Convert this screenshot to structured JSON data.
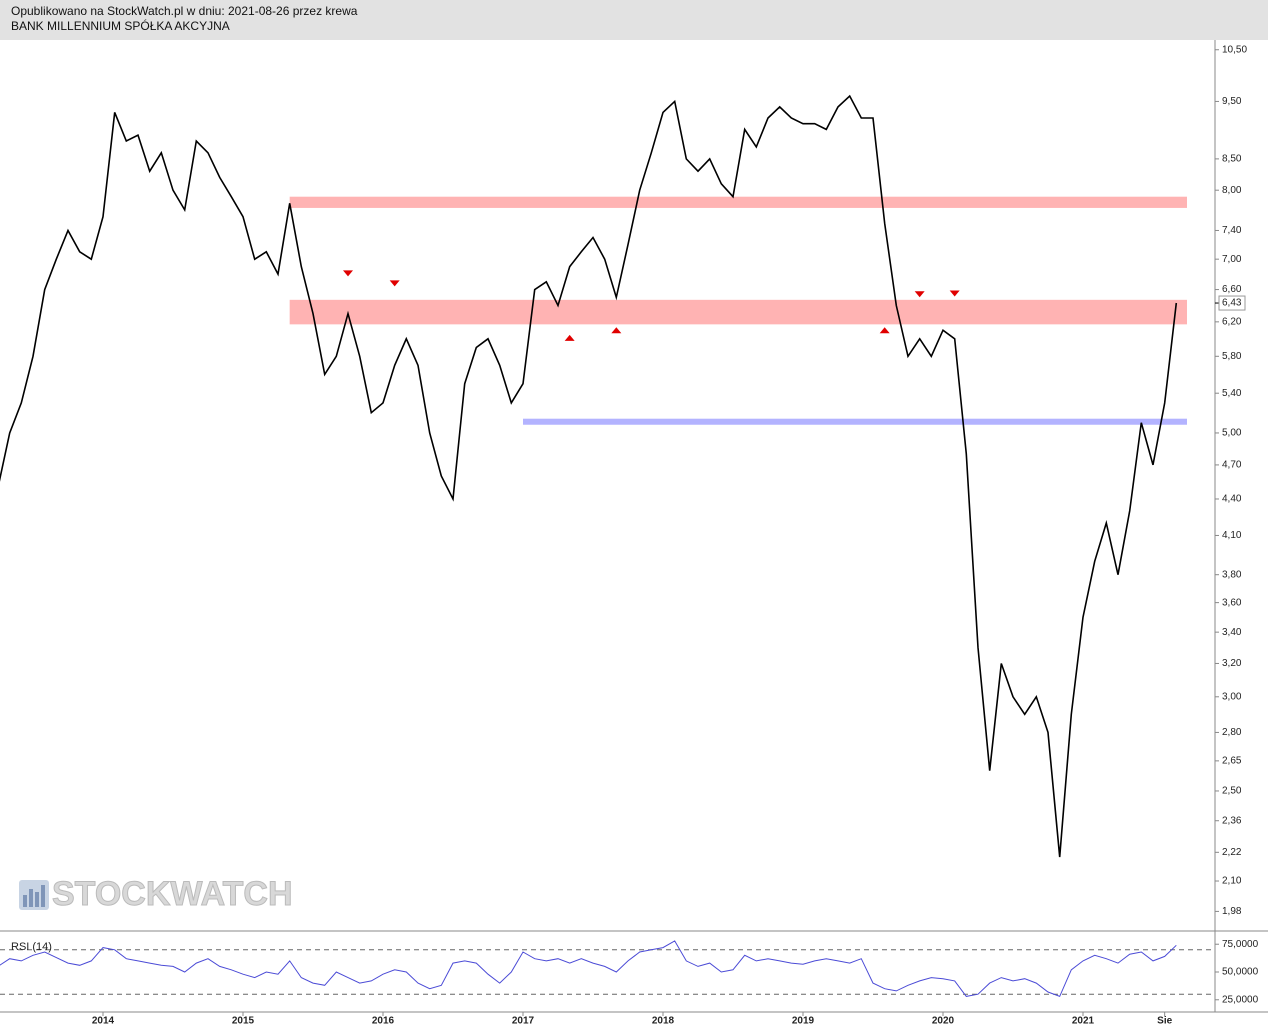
{
  "header": {
    "line1": "Opublikowano na StockWatch.pl w dniu: 2021-08-26 przez krewa",
    "line2": "BANK MILLENNIUM SPÓŁKA AKCYJNA"
  },
  "watermark": "STOCKWATCH",
  "chart_data": [
    {
      "type": "line",
      "color": "#000000",
      "log_scale": true,
      "ylim": [
        1.91,
        10.7
      ],
      "categories": [
        null,
        null,
        null,
        null,
        null,
        null,
        null,
        null,
        null,
        "2014",
        null,
        null,
        null,
        null,
        null,
        null,
        null,
        null,
        null,
        null,
        null,
        "2015",
        null,
        null,
        null,
        null,
        null,
        null,
        null,
        null,
        null,
        null,
        null,
        "2016",
        null,
        null,
        null,
        null,
        null,
        null,
        null,
        null,
        null,
        null,
        null,
        "2017",
        null,
        null,
        null,
        null,
        null,
        null,
        null,
        null,
        null,
        null,
        null,
        "2018",
        null,
        null,
        null,
        null,
        null,
        null,
        null,
        null,
        null,
        null,
        null,
        "2019",
        null,
        null,
        null,
        null,
        null,
        null,
        null,
        null,
        null,
        null,
        null,
        "2020",
        null,
        null,
        null,
        null,
        null,
        null,
        null,
        null,
        null,
        null,
        null,
        "2021",
        null,
        null,
        null,
        null,
        null,
        null,
        "Sie",
        null
      ],
      "values": [
        4.5,
        5.0,
        5.3,
        5.8,
        6.6,
        7.0,
        7.4,
        7.1,
        7.0,
        7.6,
        9.3,
        8.8,
        8.9,
        8.3,
        8.6,
        8.0,
        7.7,
        8.8,
        8.6,
        8.2,
        7.9,
        7.6,
        7.0,
        7.1,
        6.8,
        7.8,
        6.9,
        6.3,
        5.6,
        5.8,
        6.3,
        5.8,
        5.2,
        5.3,
        5.7,
        6.0,
        5.7,
        5.0,
        4.6,
        4.4,
        5.5,
        5.9,
        6.0,
        5.7,
        5.3,
        5.5,
        6.6,
        6.7,
        6.4,
        6.9,
        7.1,
        7.3,
        7.0,
        6.5,
        7.2,
        8.0,
        8.6,
        9.3,
        9.5,
        8.5,
        8.3,
        8.5,
        8.1,
        7.9,
        9.0,
        8.7,
        9.2,
        9.4,
        9.2,
        9.1,
        9.1,
        9.0,
        9.4,
        9.6,
        9.2,
        9.2,
        7.5,
        6.4,
        5.8,
        6.0,
        5.8,
        6.1,
        6.0,
        4.8,
        3.3,
        2.6,
        3.2,
        3.0,
        2.9,
        3.0,
        2.8,
        2.2,
        2.9,
        3.5,
        3.9,
        4.2,
        3.8,
        4.3,
        5.1,
        4.7,
        5.3,
        6.43
      ],
      "yticks": [
        {
          "value": 10.5,
          "label": "10,50"
        },
        {
          "value": 9.5,
          "label": "9,50"
        },
        {
          "value": 8.5,
          "label": "8,50"
        },
        {
          "value": 8,
          "label": "8,00"
        },
        {
          "value": 7.4,
          "label": "7,40"
        },
        {
          "value": 7,
          "label": "7,00"
        },
        {
          "value": 6.6,
          "label": "6,60"
        },
        {
          "value": 6.2,
          "label": "6,20"
        },
        {
          "value": 5.8,
          "label": "5,80"
        },
        {
          "value": 5.4,
          "label": "5,40"
        },
        {
          "value": 5,
          "label": "5,00"
        },
        {
          "value": 4.7,
          "label": "4,70"
        },
        {
          "value": 4.4,
          "label": "4,40"
        },
        {
          "value": 4.1,
          "label": "4,10"
        },
        {
          "value": 3.8,
          "label": "3,80"
        },
        {
          "value": 3.6,
          "label": "3,60"
        },
        {
          "value": 3.4,
          "label": "3,40"
        },
        {
          "value": 3.2,
          "label": "3,20"
        },
        {
          "value": 3,
          "label": "3,00"
        },
        {
          "value": 2.8,
          "label": "2,80"
        },
        {
          "value": 2.65,
          "label": "2,65"
        },
        {
          "value": 2.5,
          "label": "2,50"
        },
        {
          "value": 2.36,
          "label": "2,36"
        },
        {
          "value": 2.22,
          "label": "2,22"
        },
        {
          "value": 2.1,
          "label": "2,10"
        },
        {
          "value": 1.98,
          "label": "1,98"
        }
      ],
      "last_price": {
        "value": 6.43,
        "label": "6,43"
      },
      "zones": [
        {
          "low": 7.73,
          "high": 7.9,
          "from": 25,
          "color": "#ffb3b3"
        },
        {
          "low": 6.17,
          "high": 6.47,
          "from": 25,
          "color": "#ffb3b3"
        },
        {
          "low": 5.08,
          "high": 5.14,
          "from": 45,
          "color": "#b3b3ff"
        }
      ],
      "markers": [
        {
          "index": 30,
          "price": 6.81,
          "dir": "down"
        },
        {
          "index": 34,
          "price": 6.68,
          "dir": "down"
        },
        {
          "index": 79,
          "price": 6.54,
          "dir": "down"
        },
        {
          "index": 82,
          "price": 6.55,
          "dir": "down"
        },
        {
          "index": 49,
          "price": 6.01,
          "dir": "up"
        },
        {
          "index": 53,
          "price": 6.1,
          "dir": "up"
        },
        {
          "index": 76,
          "price": 6.1,
          "dir": "up"
        }
      ]
    },
    {
      "type": "line",
      "title": "RSI (14)",
      "color": "#4b4bd6",
      "ylim": [
        14,
        86
      ],
      "values": [
        55,
        62,
        60,
        65,
        68,
        63,
        58,
        56,
        60,
        72,
        70,
        62,
        60,
        58,
        56,
        55,
        50,
        58,
        62,
        55,
        52,
        48,
        45,
        50,
        48,
        60,
        45,
        40,
        38,
        50,
        45,
        40,
        42,
        48,
        52,
        50,
        40,
        35,
        38,
        58,
        60,
        58,
        48,
        40,
        50,
        68,
        62,
        60,
        62,
        58,
        62,
        58,
        55,
        50,
        60,
        68,
        70,
        72,
        78,
        60,
        55,
        58,
        50,
        52,
        65,
        60,
        62,
        60,
        58,
        57,
        60,
        62,
        60,
        58,
        62,
        40,
        35,
        33,
        38,
        42,
        45,
        44,
        42,
        28,
        30,
        40,
        45,
        42,
        44,
        40,
        32,
        28,
        52,
        60,
        65,
        62,
        58,
        66,
        68,
        60,
        64,
        74
      ],
      "yticks": [
        {
          "value": 75,
          "label": "75,0000"
        },
        {
          "value": 50,
          "label": "50,0000"
        },
        {
          "value": 25,
          "label": "25,0000"
        }
      ],
      "levels": [
        70,
        30
      ]
    }
  ]
}
